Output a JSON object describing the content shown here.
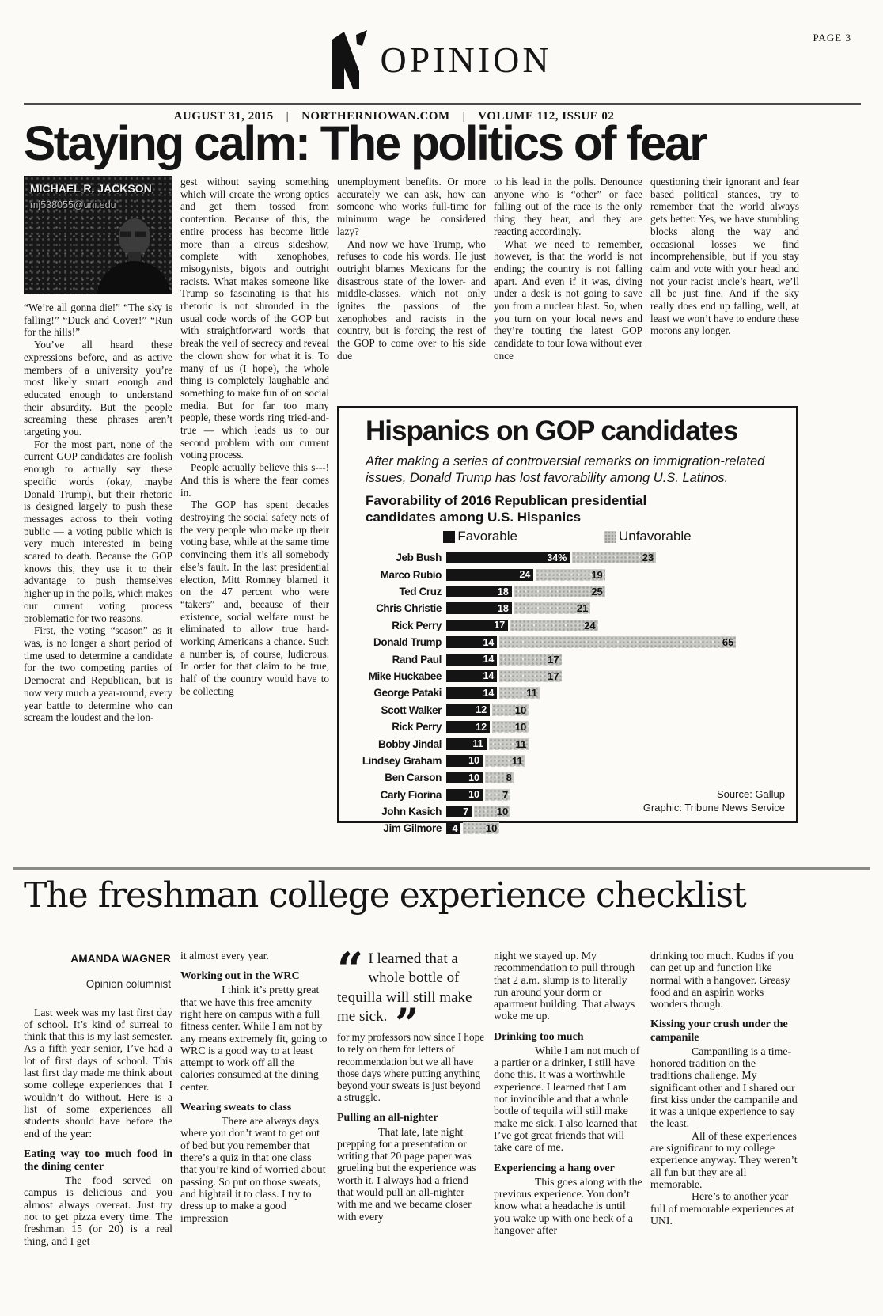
{
  "page": {
    "page_label": "PAGE 3",
    "section": "OPINION",
    "dateline": {
      "date": "AUGUST 31, 2015",
      "sep": "|",
      "site": "NORTHERNIOWAN.COM",
      "issue": "VOLUME 112, ISSUE 02"
    }
  },
  "article1": {
    "headline": "Staying calm: The politics of fear",
    "author": {
      "name": "MICHAEL R. JACKSON",
      "email": "mj538055@uni.edu"
    },
    "col1": {
      "p1": "“We’re all gonna die!” “The sky is falling!” “Duck and Cover!” “Run for the hills!”",
      "p2": "You’ve all heard these expressions before, and as active members of a university you’re most likely smart enough and educated enough to understand their absurdity. But the people screaming these phrases aren’t targeting you.",
      "p3": "For the most part, none of the current GOP candidates are foolish enough to actually say these specific words (okay, maybe Donald Trump), but their rhetoric is designed largely to push these messages across to their voting public — a voting public which is very much interested in being scared to death. Because the GOP knows this, they use it to their advantage to push themselves higher up in the polls, which makes our current voting process problematic for two reasons.",
      "p4": "First, the voting “season” as it was, is no longer a short period of time used to determine a candidate for the two competing parties of Democrat and Republican, but is now very much a year-round, every year battle to determine who can scream the loudest and the lon-"
    },
    "col2": {
      "p1": "gest without saying something which will create the wrong optics and get them tossed from contention. Because of this, the entire process has become little more than a circus sideshow, complete with xenophobes, misogynists, bigots and outright racists. What makes someone like Trump so fascinating is that his rhetoric is not shrouded in the usual code words of the GOP but with straightforward words that break the veil of secrecy and reveal the clown show for what it is. To many of us (I hope), the whole thing is completely laughable and something to make fun of on social media. But for far too many people, these words ring tried-and-true — which leads us to our second problem with our current voting process.",
      "p2": "People actually believe this s---! And this is where the fear comes in.",
      "p3": "The GOP has spent decades destroying the social safety nets of the very people who make up their voting base, while at the same time convincing them it’s all somebody else’s fault. In the last presidential election, Mitt Romney blamed it on the 47 percent who were “takers” and, because of their existence, social welfare must be eliminated to allow true hard-working Americans a chance. Such a number is, of course, ludicrous. In order for that claim to be true, half of the country would have to be collecting"
    },
    "col3": {
      "p1": "unemployment benefits. Or more accurately we can ask, how can someone who works full-time for minimum wage be considered lazy?",
      "p2": "And now we have Trump, who refuses to code his words. He just outright blames Mexicans for the disastrous state of the lower- and middle-classes, which not only ignites the passions of the xenophobes and racists in the country, but is forcing the rest of the GOP to come over to his side due"
    },
    "col4": {
      "p1": "to his lead in the polls. Denounce anyone who is “other” or face falling out of the race is the only thing they hear, and they are reacting accordingly.",
      "p2": "What we need to remember, however, is that the world is not ending; the country is not falling apart. And even if it was, diving under a desk is not going to save you from a nuclear blast. So, when you turn on your local news and they’re touting the latest GOP candidate to tour Iowa without ever once"
    },
    "col5": {
      "p1": "questioning their ignorant and fear based political stances, try to remember that the world always gets better. Yes, we have stumbling blocks along the way and occasional losses we find incomprehensible, but if you stay calm and vote with your head and not your racist uncle’s heart, we’ll all be just fine. And if the sky really does end up falling, well, at least we won’t have to endure these morons any longer."
    }
  },
  "chart": {
    "title": "Hispanics on GOP candidates",
    "subtitle": "After making a series of controversial remarks on immigration-related issues, Donald Trump has lost favorability among U.S. Latinos.",
    "heading": "Favorability of 2016 Republican presidential candidates among U.S. Hispanics",
    "legend_favorable": "Favorable",
    "legend_unfavorable": "Unfavorable",
    "source": "Source: Gallup",
    "credit": "Graphic: Tribune News Service"
  },
  "chart_data": {
    "type": "bar",
    "orientation": "horizontal",
    "title": "Favorability of 2016 Republican presidential candidates among U.S. Hispanics",
    "categories": [
      "Jeb Bush",
      "Marco Rubio",
      "Ted Cruz",
      "Chris Christie",
      "Rick Perry",
      "Donald Trump",
      "Rand Paul",
      "Mike Huckabee",
      "George Pataki",
      "Scott Walker",
      "Rick Perry",
      "Bobby Jindal",
      "Lindsey Graham",
      "Ben Carson",
      "Carly Fiorina",
      "John Kasich",
      "Jim Gilmore"
    ],
    "series": [
      {
        "name": "Favorable",
        "values": [
          34,
          24,
          18,
          18,
          17,
          14,
          14,
          14,
          14,
          12,
          12,
          11,
          10,
          10,
          10,
          7,
          4
        ]
      },
      {
        "name": "Unfavorable",
        "values": [
          23,
          19,
          25,
          21,
          24,
          65,
          17,
          17,
          11,
          10,
          10,
          11,
          11,
          8,
          7,
          10,
          10
        ]
      }
    ],
    "first_value_label": "34%",
    "favorable_color": "#141414",
    "unfavorable_color": "#c9c9c6",
    "legend_position": "top",
    "xlim": [
      0,
      70
    ]
  },
  "article2": {
    "headline": "The freshman college experience checklist",
    "byline": {
      "name": "AMANDA WAGNER",
      "role": "Opinion columnist"
    },
    "col1": {
      "p1": "Last week was my last first day of school. It’s kind of surreal to think that this is my last semester. As a fifth year senior, I’ve had a lot of first days of school. This last first day made me think about some college experiences that I wouldn’t do without. Here is a list of some experiences all students should have before the end of the year:",
      "h1": "Eating way too much food in the dining center",
      "p2": "The food served on campus is delicious and you almost always overeat. Just try not to get pizza every time. The freshman 15 (or 20) is a real thing, and I get"
    },
    "col2": {
      "p1": "it almost every year.",
      "h1": "Working out in the WRC",
      "p2": "I think it’s pretty great that we have this free amenity right here on campus with a full fitness center. While I am not by any means extremely fit, going to WRC is a good way to at least attempt to work off all the calories consumed at the dining center.",
      "h2": "Wearing sweats to class",
      "p3": "There are always days where you don’t want to get out of bed but you remember that there’s a quiz in that one class that you’re kind of worried about passing. So put on those sweats, and hightail it to class. I try to dress up to make a good impression"
    },
    "col3": {
      "quote_open": "“",
      "quote_text": "I learned that a whole bottle of tequilla will still make me sick.",
      "quote_close": "”",
      "p1": "for my professors now since I hope to rely on them for letters of recommendation but we all have those days where putting anything beyond your sweats is just beyond a struggle.",
      "h1": "Pulling an all-nighter",
      "p2": "That late, late night prepping for a presentation or writing that 20 page paper was grueling but the experience was worth it. I always had a friend that would pull an all-nighter with me and we became closer with every"
    },
    "col4": {
      "p1": "night we stayed up. My recommendation to pull through that 2 a.m. slump is to literally run around your dorm or apartment building. That always woke me up.",
      "h1": "Drinking too much",
      "p2": "While I am not much of a partier or a drinker, I still have done this. It was a worthwhile experience. I learned that I am not invincible and that a whole bottle of tequila will still make make me sick. I also learned that I’ve got great friends that will take care of me.",
      "h2": "Experiencing a hang over",
      "p3": "This goes along with the previous experience. You don’t know what a headache is until you wake up with one heck of a hangover after"
    },
    "col5": {
      "p1": "drinking too much. Kudos if you can get up and function like normal with a hangover. Greasy food and an aspirin works wonders though.",
      "h1": "Kissing your crush under the campanile",
      "p2": "Campaniling is a time-honored tradition on the traditions challenge. My significant other and I shared our first kiss under the campanile and it was a unique experience to say the least.",
      "p3": "All of these experiences are significant to my college experience anyway. They weren’t all fun but they are all memorable.",
      "p4": "Here’s to another year full of memorable experiences at UNI."
    }
  }
}
